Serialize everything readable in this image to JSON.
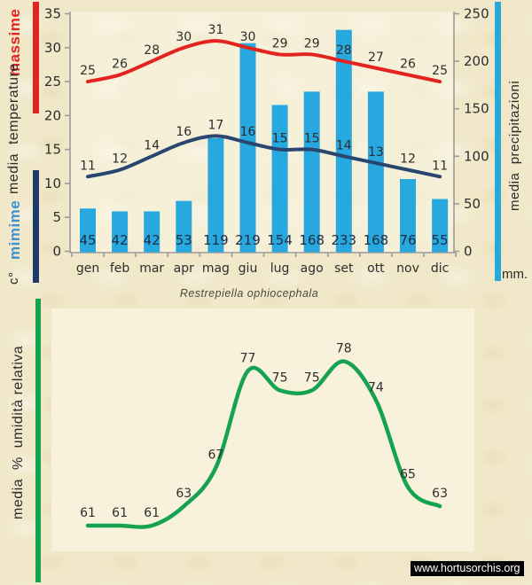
{
  "page": {
    "species_title": "Restrepiella ophiocephala",
    "watermark": "www.hortusorchis.org"
  },
  "side_labels": {
    "massime": "massime",
    "media_temperature": "media  temperature",
    "mimime": "mimime",
    "celsius": "c°",
    "media_precipitazioni": "media  precipitazioni",
    "mm": "mm.",
    "umidita": "media  %  umidità relativa"
  },
  "colors": {
    "background": "#f0e8c9",
    "plot_background": "#f8f1dc",
    "max_temp_line": "#e2231f",
    "min_temp_line": "#28466f",
    "precip_bar": "#27a8df",
    "humidity_line": "#16a350",
    "axis": "#9b9b9b",
    "label_text": "#2d2d2d",
    "bar_label_text": "#1f2c44"
  },
  "chart_data": [
    {
      "type": "combo-bar-line",
      "title": "Restrepiella ophiocephala",
      "categories": [
        "gen",
        "feb",
        "mar",
        "apr",
        "mag",
        "giu",
        "lug",
        "ago",
        "set",
        "ott",
        "nov",
        "dic"
      ],
      "series": [
        {
          "name": "massime",
          "type": "line",
          "axis": "left",
          "color": "#e2231f",
          "values": [
            25,
            26,
            28,
            30,
            31,
            30,
            29,
            29,
            28,
            27,
            26,
            25
          ]
        },
        {
          "name": "mimime",
          "type": "line",
          "axis": "left",
          "color": "#28466f",
          "values": [
            11,
            12,
            14,
            16,
            17,
            16,
            15,
            15,
            14,
            13,
            12,
            11
          ]
        },
        {
          "name": "media precipitazioni",
          "type": "bar",
          "axis": "right",
          "color": "#27a8df",
          "values": [
            45,
            42,
            42,
            53,
            119,
            219,
            154,
            168,
            233,
            168,
            76,
            55
          ]
        }
      ],
      "left_axis": {
        "title": "media temperature",
        "unit": "c°",
        "min": 0,
        "max": 35,
        "step": 5
      },
      "right_axis": {
        "title": "media precipitazioni",
        "unit": "mm.",
        "min": 0,
        "max": 250,
        "step": 50
      },
      "grid": false,
      "value_labels": true
    },
    {
      "type": "line",
      "categories": [
        "gen",
        "feb",
        "mar",
        "apr",
        "mag",
        "giu",
        "lug",
        "ago",
        "set",
        "ott",
        "nov",
        "dic"
      ],
      "series": [
        {
          "name": "media % umidità relativa",
          "color": "#16a350",
          "values": [
            61,
            61,
            61,
            63,
            67,
            77,
            75,
            75,
            78,
            74,
            65,
            63
          ]
        }
      ],
      "ylabel": "media % umidità relativa",
      "grid": false,
      "value_labels": true,
      "x_axis_shown": false
    }
  ]
}
